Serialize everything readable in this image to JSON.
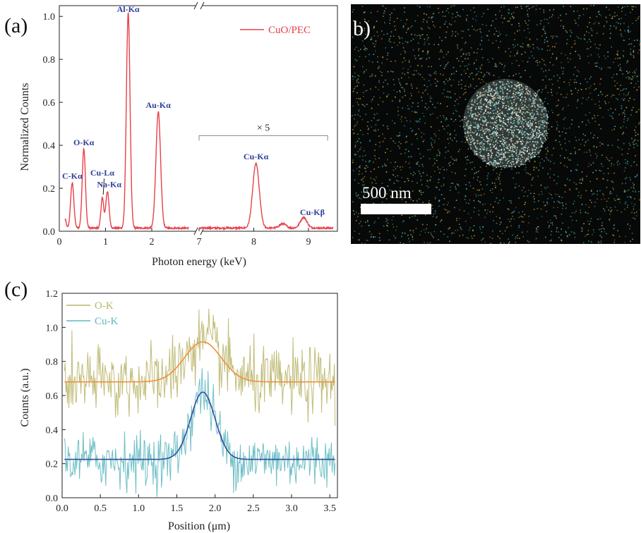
{
  "panels": {
    "a": {
      "label": "(a)"
    },
    "b": {
      "label": "b)",
      "scale_bar": "500 nm"
    },
    "c": {
      "label": "(c)"
    }
  },
  "chart_data": [
    {
      "id": "a",
      "type": "line",
      "xlabel": "Photon energy (keV)",
      "ylabel": "Normalized Counts",
      "axis_break": true,
      "segments": [
        {
          "xlim": [
            0,
            2.8
          ],
          "ticks": [
            0,
            1,
            2
          ]
        },
        {
          "xlim": [
            7,
            9.5
          ],
          "ticks": [
            7,
            8,
            9
          ]
        }
      ],
      "ylim": [
        0,
        1.05
      ],
      "yticks": [
        0.0,
        0.2,
        0.4,
        0.6,
        0.8,
        1.0
      ],
      "series": [
        {
          "name": "CuO/PEC",
          "color": "#e8404a",
          "baseline": 0.015,
          "peaks": [
            {
              "x": 0.28,
              "height": 0.21,
              "width": 0.035
            },
            {
              "x": 0.53,
              "height": 0.37,
              "width": 0.035
            },
            {
              "x": 0.93,
              "height": 0.14,
              "width": 0.03
            },
            {
              "x": 1.04,
              "height": 0.17,
              "width": 0.035
            },
            {
              "x": 1.49,
              "height": 1.0,
              "width": 0.04
            },
            {
              "x": 2.14,
              "height": 0.54,
              "width": 0.05
            },
            {
              "x": 8.04,
              "height": 0.3,
              "width": 0.06
            },
            {
              "x": 8.53,
              "height": 0.02,
              "width": 0.06
            },
            {
              "x": 8.91,
              "height": 0.05,
              "width": 0.06
            }
          ]
        }
      ],
      "annotations": [
        {
          "text": "C-Kα",
          "x": 0.28,
          "y": 0.245
        },
        {
          "text": "O-Kα",
          "x": 0.53,
          "y": 0.4
        },
        {
          "text": "Cu-Lα",
          "x": 0.93,
          "y": 0.26
        },
        {
          "text": "Na-Kα",
          "x": 1.08,
          "y": 0.205
        },
        {
          "text": "Al-Kα",
          "x": 1.49,
          "y": 1.02
        },
        {
          "text": "Au-Kα",
          "x": 2.14,
          "y": 0.575
        },
        {
          "text": "Cu-Kα",
          "x": 8.04,
          "y": 0.335
        },
        {
          "text": "Cu-Kβ",
          "x": 9.07,
          "y": 0.075
        }
      ],
      "bracket": {
        "text": "× 5",
        "x_from": 7.0,
        "x_to": 9.35,
        "y": 0.445
      }
    },
    {
      "id": "c",
      "type": "line",
      "xlabel": "Position (μm)",
      "ylabel": "Counts (a.u.)",
      "xlim": [
        0.0,
        3.6
      ],
      "ylim": [
        0.0,
        1.2
      ],
      "xticks": [
        0.0,
        0.5,
        1.0,
        1.5,
        2.0,
        2.5,
        3.0,
        3.5
      ],
      "yticks": [
        0.0,
        0.2,
        0.4,
        0.6,
        0.8,
        1.0,
        1.2
      ],
      "series": [
        {
          "name": "O-K",
          "color": "#b9b56a",
          "baseline": 0.68,
          "amplitude": 0.23,
          "center": 1.84,
          "sigma": 0.24,
          "noise": 0.1
        },
        {
          "name": "Cu-K",
          "color": "#5fb8c0",
          "baseline": 0.22,
          "amplitude": 0.4,
          "center": 1.84,
          "sigma": 0.16,
          "noise": 0.08
        }
      ],
      "fits": [
        {
          "of": "O-K",
          "color": "#f0903a",
          "baseline": 0.68,
          "amplitude": 0.235,
          "center": 1.84,
          "sigma": 0.24
        },
        {
          "of": "Cu-K",
          "color": "#2d4f9e",
          "baseline": 0.225,
          "amplitude": 0.395,
          "center": 1.84,
          "sigma": 0.16
        }
      ]
    }
  ]
}
